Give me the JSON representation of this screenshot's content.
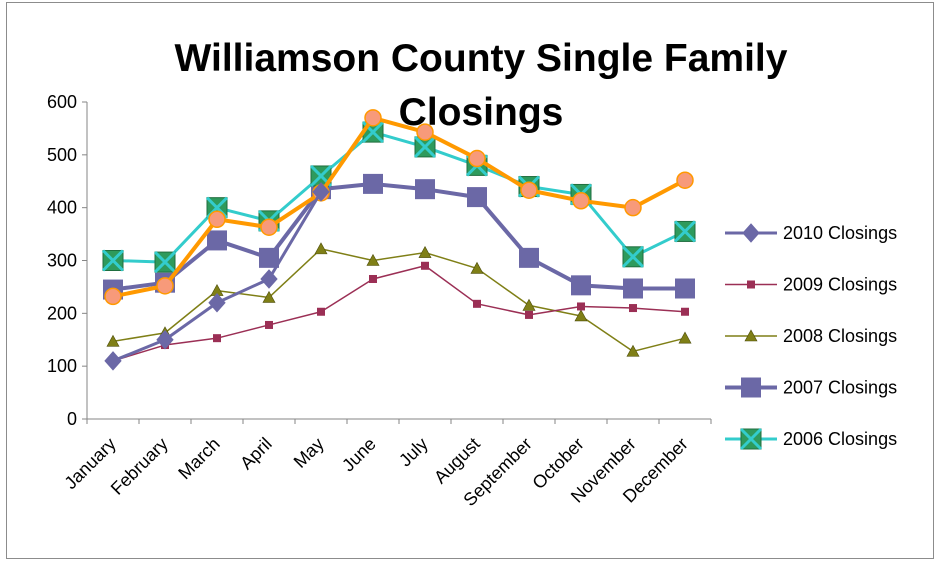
{
  "chart_data": {
    "type": "line",
    "title_lines": [
      "Williamson County Single Family",
      "Closings"
    ],
    "categories": [
      "January",
      "February",
      "March",
      "April",
      "May",
      "June",
      "July",
      "August",
      "September",
      "October",
      "November",
      "December"
    ],
    "ylim": [
      0,
      600
    ],
    "yticks": [
      0,
      100,
      200,
      300,
      400,
      500,
      600
    ],
    "grid": false,
    "legend_position": "right",
    "series": [
      {
        "name": "2010 Closings",
        "color": "#6b68a6",
        "marker": "diamond",
        "values": [
          110,
          150,
          220,
          265,
          430,
          null,
          null,
          null,
          null,
          null,
          null,
          null
        ]
      },
      {
        "name": "2009 Closings",
        "color": "#9b2f55",
        "marker": "square-small",
        "values": [
          110,
          140,
          153,
          178,
          203,
          265,
          290,
          218,
          197,
          213,
          210,
          203
        ]
      },
      {
        "name": "2008 Closings",
        "color": "#7f7f16",
        "marker": "triangle",
        "values": [
          147,
          163,
          243,
          230,
          322,
          300,
          315,
          285,
          215,
          195,
          128,
          153
        ]
      },
      {
        "name": "2007 Closings",
        "color": "#6b68a6",
        "marker": "square-large",
        "values": [
          245,
          258,
          338,
          305,
          435,
          445,
          435,
          420,
          305,
          253,
          247,
          247
        ]
      },
      {
        "name": "2006 Closings",
        "color": "#33cccc",
        "marker": "x-square",
        "values": [
          300,
          297,
          400,
          375,
          460,
          543,
          515,
          480,
          440,
          425,
          307,
          355
        ]
      },
      {
        "name": "",
        "color": "#ff9900",
        "marker": "circle",
        "values": [
          232,
          252,
          378,
          363,
          428,
          570,
          543,
          493,
          433,
          413,
          400,
          452
        ]
      }
    ]
  }
}
